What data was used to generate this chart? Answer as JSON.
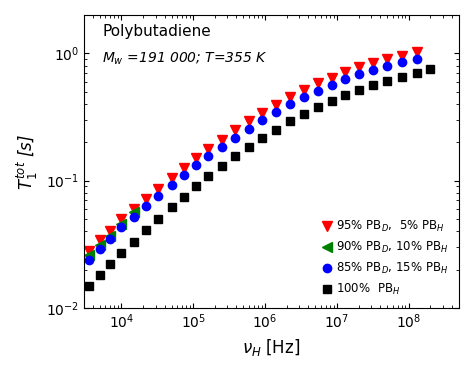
{
  "title_line1": "Polybutadiene",
  "title_line2": "$M_w$ =191 000; $T$=355 K",
  "xlabel": "$\\nu_H$ [Hz]",
  "ylabel": "$T_1^{tot}$ [s]",
  "xlim": [
    3000,
    500000000.0
  ],
  "ylim": [
    0.01,
    2.0
  ],
  "series": [
    {
      "label": "95% PB$_D$,  5% PB$_H$",
      "color": "red",
      "marker": "v",
      "markersize": 7,
      "x": [
        3500,
        5000,
        7000,
        10000,
        15000,
        22000,
        32000,
        50000,
        75000,
        110000,
        160000,
        250000,
        380000,
        600000,
        900000,
        1400000,
        2200000,
        3500000,
        5500000,
        8500000,
        13000000,
        20000000,
        32000000,
        50000000,
        80000000,
        130000000
      ],
      "y": [
        0.028,
        0.034,
        0.04,
        0.05,
        0.06,
        0.072,
        0.086,
        0.105,
        0.126,
        0.15,
        0.178,
        0.21,
        0.248,
        0.292,
        0.342,
        0.395,
        0.455,
        0.518,
        0.58,
        0.645,
        0.71,
        0.775,
        0.84,
        0.9,
        0.96,
        1.02
      ]
    },
    {
      "label": "90% PB$_D$, 10% PB$_H$",
      "color": "green",
      "marker": "<",
      "markersize": 7,
      "x": [
        3500,
        5000,
        7000,
        10000,
        15000
      ],
      "y": [
        0.026,
        0.031,
        0.037,
        0.046,
        0.057
      ]
    },
    {
      "label": "85% PB$_D$, 15% PB$_H$",
      "color": "blue",
      "marker": "o",
      "markersize": 6,
      "x": [
        3500,
        5000,
        7000,
        10000,
        15000,
        22000,
        32000,
        50000,
        75000,
        110000,
        160000,
        250000,
        380000,
        600000,
        900000,
        1400000,
        2200000,
        3500000,
        5500000,
        8500000,
        13000000,
        20000000,
        32000000,
        50000000,
        80000000,
        130000000
      ],
      "y": [
        0.024,
        0.029,
        0.035,
        0.043,
        0.052,
        0.063,
        0.076,
        0.092,
        0.111,
        0.132,
        0.157,
        0.185,
        0.218,
        0.256,
        0.3,
        0.348,
        0.4,
        0.455,
        0.51,
        0.568,
        0.625,
        0.682,
        0.74,
        0.795,
        0.85,
        0.905
      ]
    },
    {
      "label": "100%  PB$_H$",
      "color": "black",
      "marker": "s",
      "markersize": 6,
      "x": [
        3500,
        5000,
        7000,
        10000,
        15000,
        22000,
        32000,
        50000,
        75000,
        110000,
        160000,
        250000,
        380000,
        600000,
        900000,
        1400000,
        2200000,
        3500000,
        5500000,
        8500000,
        13000000,
        20000000,
        32000000,
        50000000,
        80000000,
        130000000,
        200000000
      ],
      "y": [
        0.015,
        0.018,
        0.022,
        0.027,
        0.033,
        0.041,
        0.05,
        0.062,
        0.075,
        0.09,
        0.108,
        0.13,
        0.155,
        0.184,
        0.216,
        0.252,
        0.292,
        0.336,
        0.38,
        0.425,
        0.47,
        0.516,
        0.562,
        0.608,
        0.655,
        0.705,
        0.755
      ]
    }
  ],
  "legend_loc": "lower right",
  "bg_color": "white",
  "spine_color": "black"
}
